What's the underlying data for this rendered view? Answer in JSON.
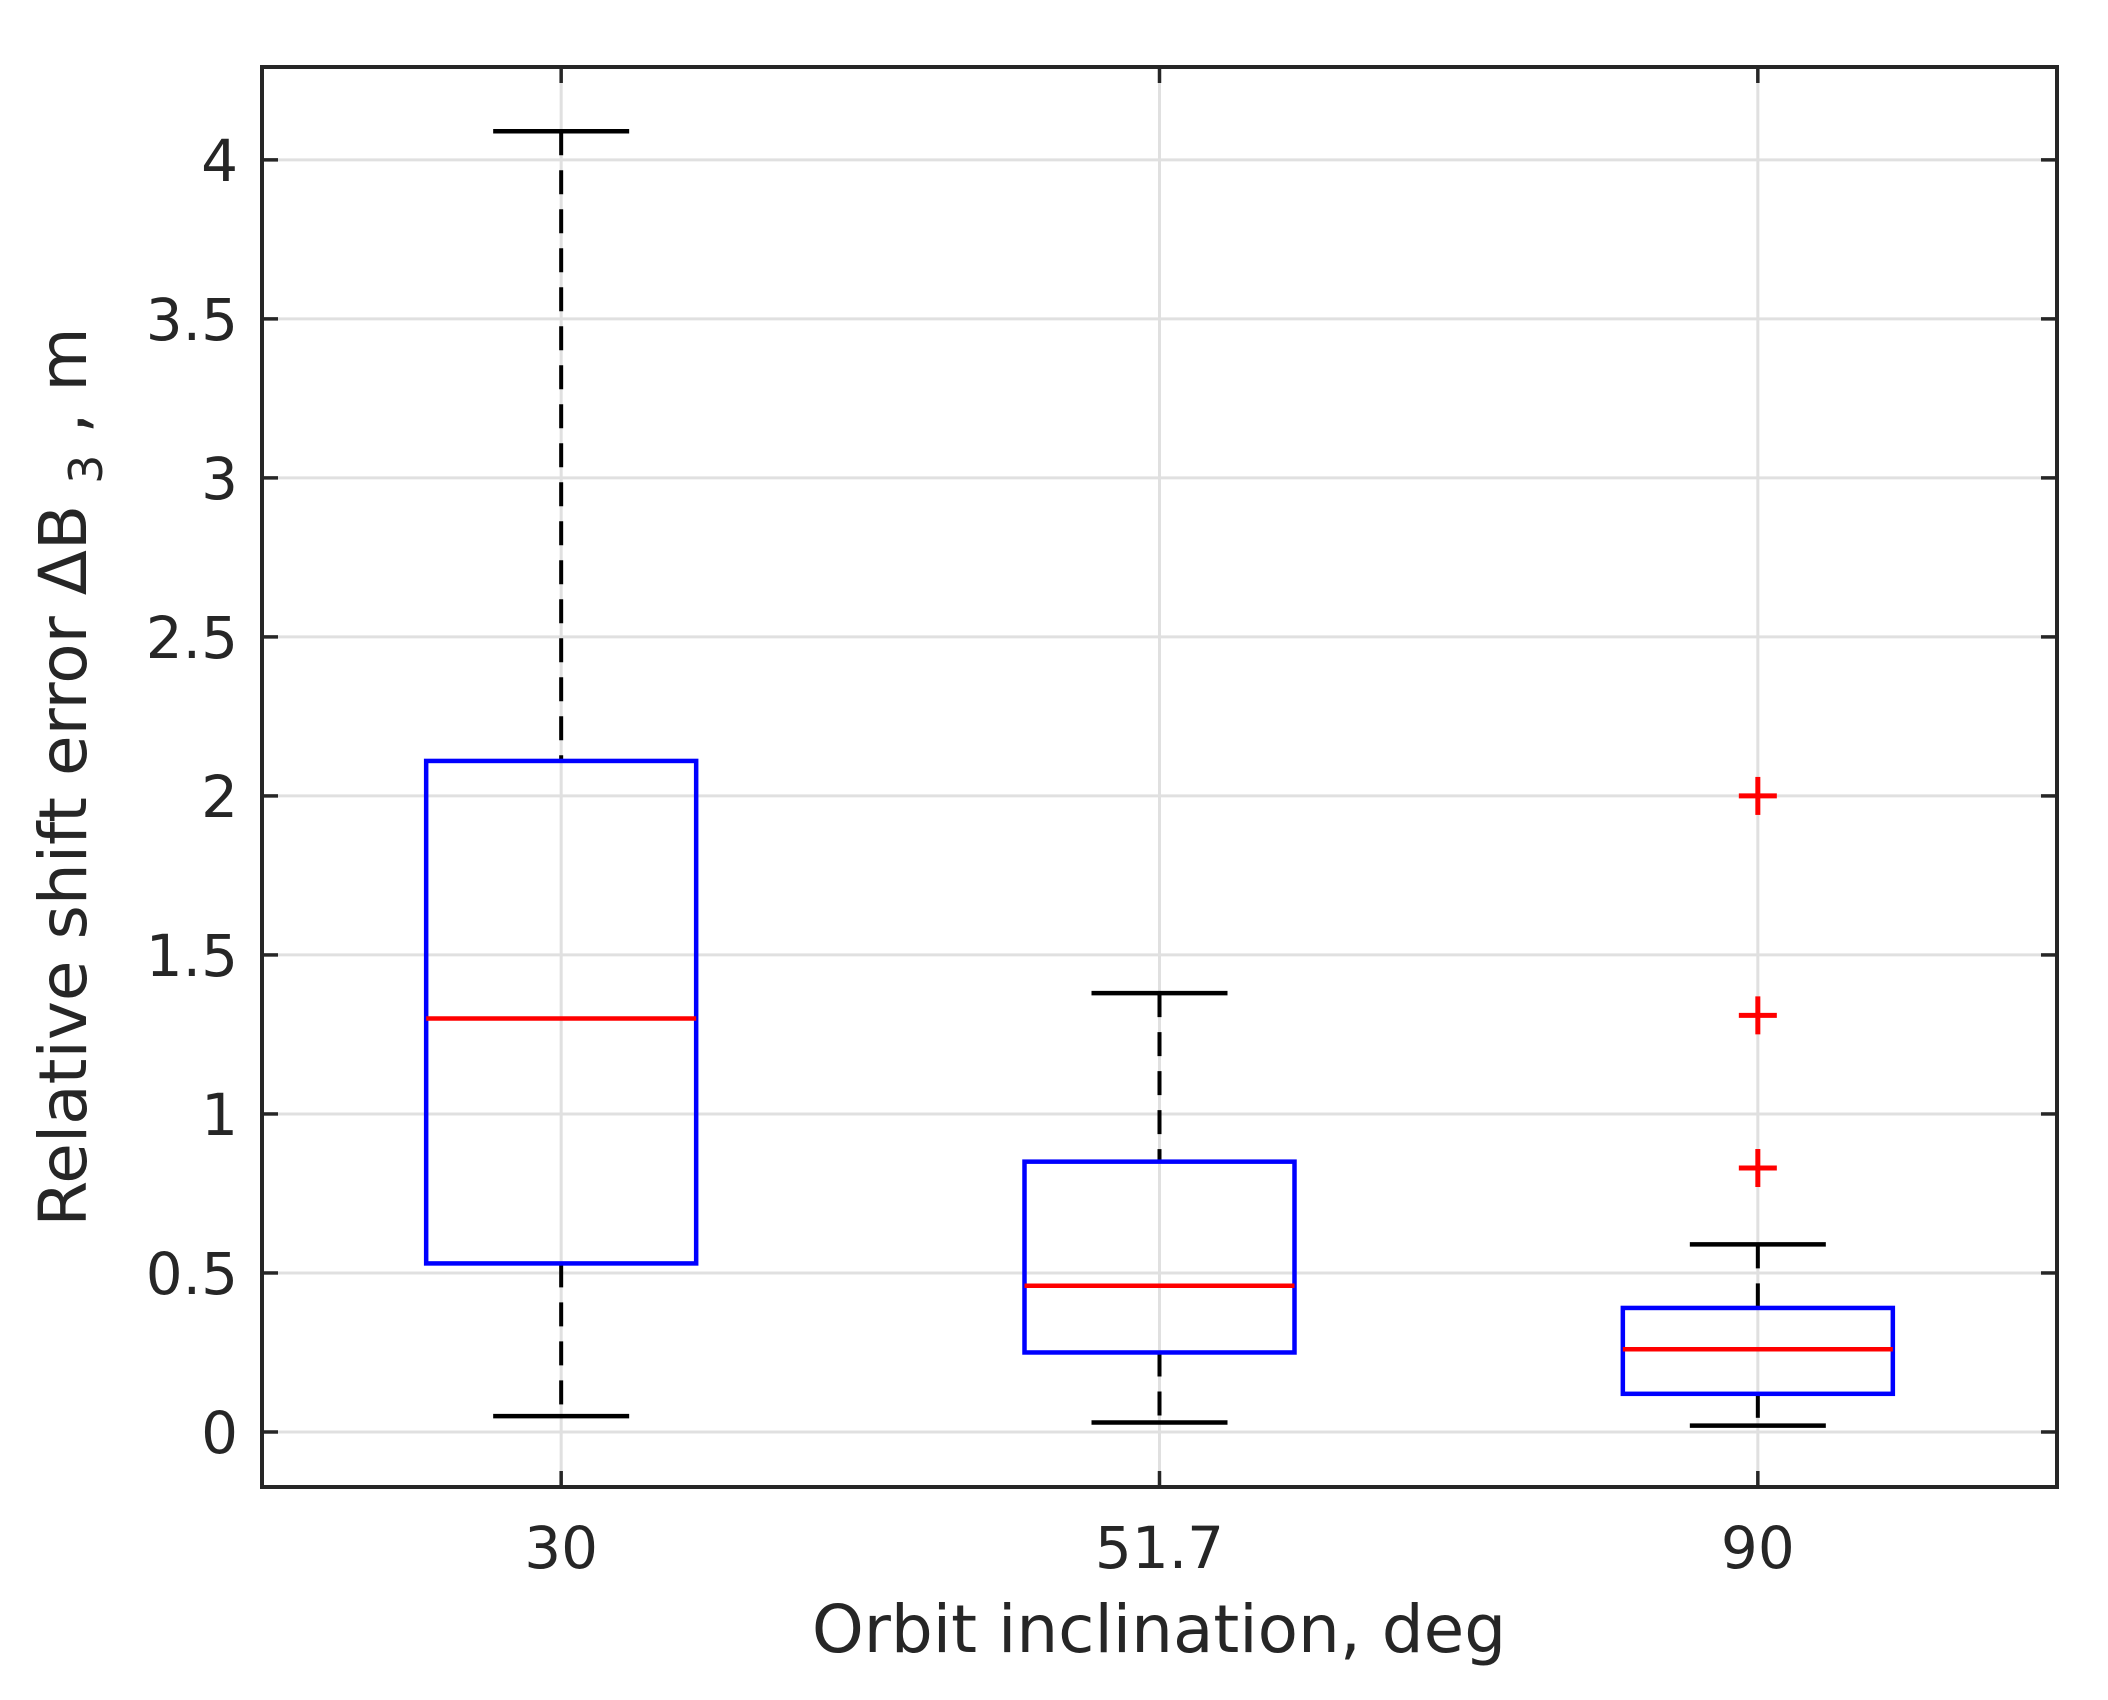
{
  "chart_data": {
    "type": "boxplot",
    "title": "",
    "xlabel": "Orbit inclination, deg",
    "ylabel": {
      "prefix": "Relative shift error ΔB",
      "subscript": "3",
      "suffix": ", m"
    },
    "categories": [
      "30",
      "51.7",
      "90"
    ],
    "yticks": [
      0,
      0.5,
      1,
      1.5,
      2,
      2.5,
      3,
      3.5,
      4
    ],
    "ytick_labels": [
      "0",
      "0.5",
      "1",
      "1.5",
      "2",
      "2.5",
      "3",
      "3.5",
      "4"
    ],
    "ylim": [
      -0.173,
      4.292
    ],
    "grid": true,
    "legend": false,
    "boxes": [
      {
        "category": "30",
        "whisker_low": 0.05,
        "q1": 0.53,
        "median": 1.3,
        "q3": 2.11,
        "whisker_high": 4.09,
        "outliers": []
      },
      {
        "category": "51.7",
        "whisker_low": 0.03,
        "q1": 0.25,
        "median": 0.46,
        "q3": 0.85,
        "whisker_high": 1.38,
        "outliers": []
      },
      {
        "category": "90",
        "whisker_low": 0.02,
        "q1": 0.12,
        "median": 0.26,
        "q3": 0.39,
        "whisker_high": 0.59,
        "outliers": [
          0.83,
          1.31,
          2.0
        ]
      }
    ],
    "colors": {
      "box": "#0000ff",
      "median": "#ff0000",
      "whisker": "#000000",
      "cap": "#000000",
      "outlier": "#ff0000",
      "grid": "#e0e0e0",
      "axis_border": "#262626",
      "tick": "#262626",
      "text": "#262626",
      "background": "#ffffff"
    }
  }
}
